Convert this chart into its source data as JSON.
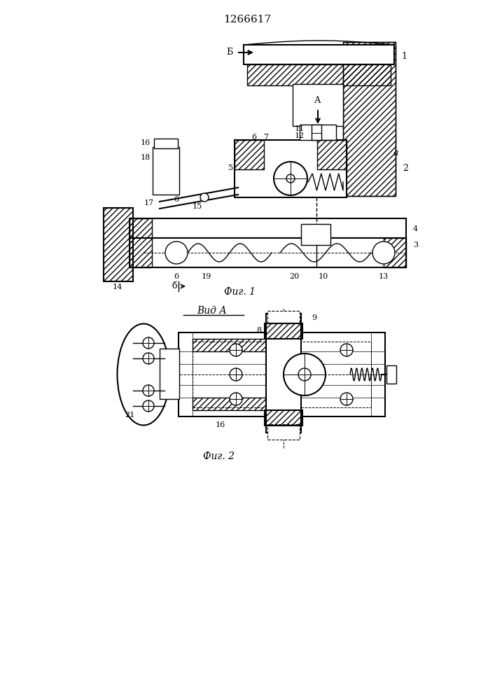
{
  "title": "1266617",
  "fig1_caption": "Фиг. 1",
  "fig2_caption": "Фиг. 2",
  "view_a_label": "Вид А",
  "bg_color": "#ffffff",
  "line_color": "#000000",
  "lw": 1.0,
  "lw_thick": 1.5
}
